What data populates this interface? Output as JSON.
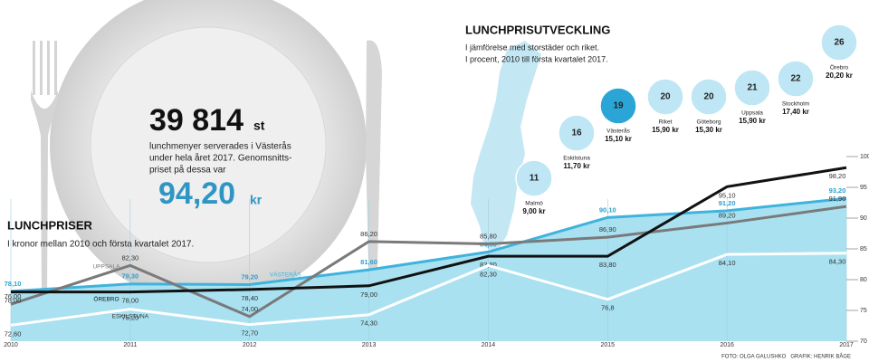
{
  "infographic": {
    "count": "39 814",
    "count_unit": "st",
    "lines": [
      "lunchmenyer serverades i Västerås",
      "under hela året 2017. Genomsnitts-",
      "priset på dessa var"
    ],
    "price": "94,20",
    "price_unit": "kr"
  },
  "credits": "FOTO: OLGA GALUSHKO   GRAFIK: HENRIK BÅGE",
  "chart_data": [
    {
      "type": "line",
      "title": "LUNCHPRISER",
      "subtitle": "I kronor mellan 2010 och första kvartalet 2017.",
      "x": [
        2010,
        2011,
        2012,
        2013,
        2014,
        2015,
        2016,
        2017
      ],
      "xlim": [
        2010,
        2017
      ],
      "ylim": [
        70,
        100
      ],
      "yticks": [
        70,
        75,
        80,
        85,
        90,
        95,
        100
      ],
      "grid": true,
      "series": [
        {
          "name": "VÄSTERÅS",
          "color": "#3fb3dc",
          "area_color": "#a9e1f1",
          "area": true,
          "values": [
            78.1,
            79.3,
            79.2,
            81.6,
            84.5,
            90.1,
            91.2,
            93.2
          ],
          "value_labels": [
            "78,10",
            "79,30",
            "79,20",
            "81,60",
            "84,50",
            "90,10",
            "91,20",
            "93,20"
          ]
        },
        {
          "name": "UPPSALA",
          "color": "#7a7a7a",
          "values": [
            76.0,
            82.3,
            74.0,
            86.2,
            85.8,
            86.9,
            89.2,
            91.9
          ],
          "value_labels": [
            "76,00",
            "82,30",
            "74,00",
            "86,20",
            "85,80",
            "86,90",
            "89,20",
            "91,90"
          ]
        },
        {
          "name": "ÖREBRO",
          "color": "#111111",
          "values": [
            78.0,
            78.0,
            78.4,
            79.0,
            83.8,
            83.8,
            95.1,
            98.2
          ],
          "value_labels": [
            "78,00",
            "78,00",
            "78,40",
            "79,00",
            "83,80",
            "83,80",
            "95,10",
            "98,20"
          ]
        },
        {
          "name": "ESKILSTUNA",
          "color": "#ffffff",
          "values": [
            72.6,
            75.2,
            72.7,
            74.3,
            82.3,
            76.8,
            84.1,
            84.3
          ],
          "value_labels": [
            "72,60",
            "75,20",
            "72,70",
            "74,30",
            "82,30",
            "76,8",
            "84,10",
            "84,30"
          ]
        }
      ]
    },
    {
      "type": "bubble",
      "title": "LUNCHPRISUTVECKLING",
      "subtitle": [
        "I jämförelse med storstäder och riket.",
        "I procent, 2010 till första kvartalet 2017."
      ],
      "categories": [
        "Malmö",
        "Eskilstuna",
        "Västerås",
        "Riket",
        "Göteborg",
        "Uppsala",
        "Stockholm",
        "Örebro"
      ],
      "values": [
        11,
        16,
        19,
        20,
        20,
        21,
        22,
        26
      ],
      "amounts": [
        "9,00 kr",
        "11,70 kr",
        "15,10 kr",
        "15,90 kr",
        "15,30 kr",
        "15,90 kr",
        "17,40 kr",
        "20,20 kr"
      ],
      "colors": [
        "#bfe6f4",
        "#bfe6f4",
        "#2aa5d6",
        "#bfe6f4",
        "#bfe6f4",
        "#bfe6f4",
        "#bfe6f4",
        "#bfe6f4"
      ]
    }
  ]
}
